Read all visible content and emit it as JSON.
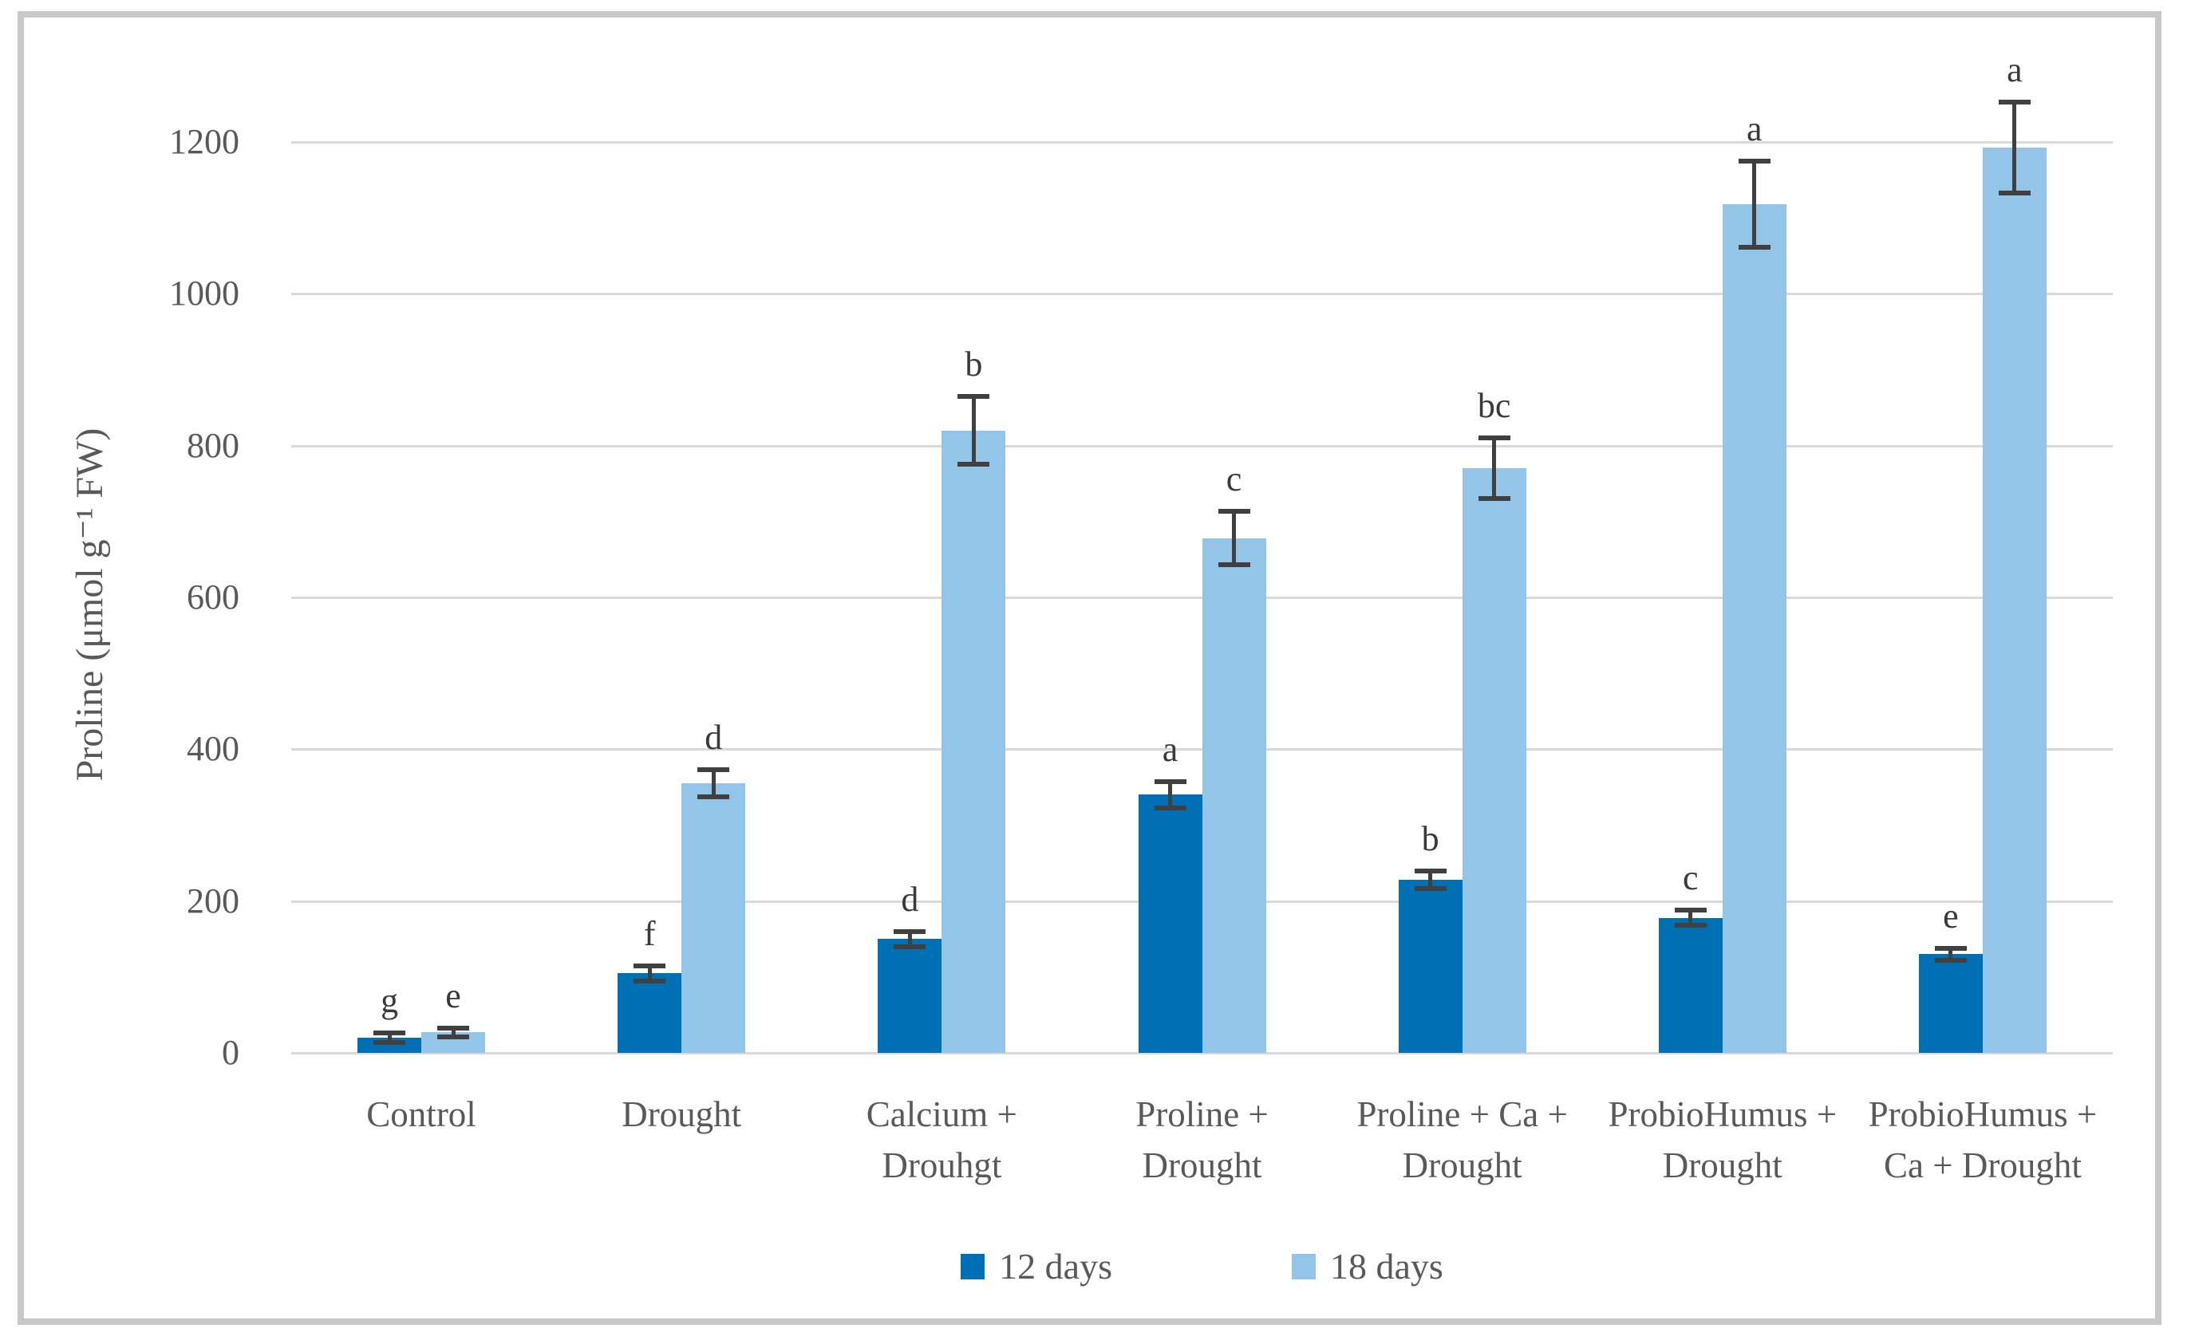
{
  "figure": {
    "y_axis_title": "Proline (μmol g⁻¹ FW)"
  },
  "chart_data": {
    "type": "bar",
    "title": "",
    "xlabel": "",
    "ylabel": "Proline (μmol g⁻¹ FW)",
    "ylim": [
      0,
      1200
    ],
    "ytick_step": 200,
    "yticks": [
      0,
      200,
      400,
      600,
      800,
      1000,
      1200
    ],
    "grid": "horizontal",
    "legend_position": "bottom",
    "categories": [
      "Control",
      "Drought",
      "Calcium + Drouhgt",
      "Proline + Drought",
      "Proline + Ca + Drought",
      "ProbioHumus + Drought",
      "ProbioHumus + Ca + Drought"
    ],
    "category_label_lines": [
      [
        "Control"
      ],
      [
        "Drought"
      ],
      [
        "Calcium +",
        "Drouhgt"
      ],
      [
        "Proline +",
        "Drought"
      ],
      [
        "Proline + Ca +",
        "Drought"
      ],
      [
        "ProbioHumus +",
        "Drought"
      ],
      [
        "ProbioHumus +",
        "Ca + Drought"
      ]
    ],
    "series": [
      {
        "name": "12 days",
        "color": "#0070b5",
        "values": [
          20,
          105,
          150,
          340,
          228,
          178,
          130
        ],
        "errors": [
          6,
          10,
          10,
          17,
          12,
          10,
          8
        ],
        "letters": [
          "g",
          "f",
          "d",
          "a",
          "b",
          "c",
          "e"
        ]
      },
      {
        "name": "18 days",
        "color": "#92c5e8",
        "values": [
          27,
          355,
          820,
          678,
          770,
          1118,
          1193
        ],
        "errors": [
          6,
          18,
          45,
          35,
          40,
          57,
          60
        ],
        "letters": [
          "e",
          "d",
          "b",
          "c",
          "bc",
          "a",
          "a"
        ]
      }
    ],
    "error_bar_color": "#404040",
    "gridline_color": "#d9d9d9",
    "axis_text_color": "#595959"
  }
}
